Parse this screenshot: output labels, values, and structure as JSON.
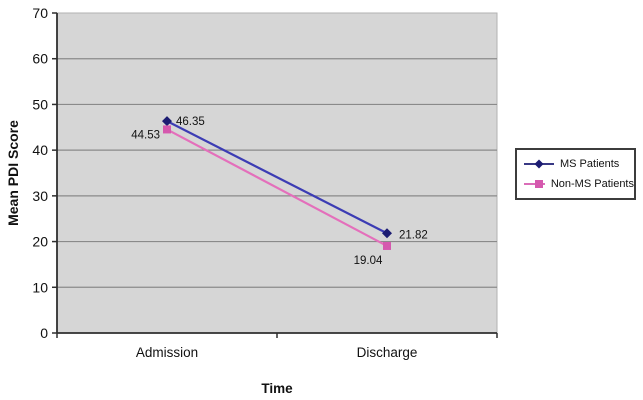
{
  "chart_data": {
    "type": "line",
    "categories": [
      "Admission",
      "Discharge"
    ],
    "series": [
      {
        "name": "MS Patients",
        "values": [
          46.35,
          21.82
        ],
        "point_labels": [
          "46.35",
          "21.82"
        ],
        "line_color": "#3c3cb4",
        "marker_color": "#1c1c72",
        "marker": "diamond"
      },
      {
        "name": "Non-MS Patients",
        "values": [
          44.53,
          19.04
        ],
        "point_labels": [
          "44.53",
          "19.04"
        ],
        "line_color": "#e46fbb",
        "marker_color": "#d558ae",
        "marker": "square"
      }
    ],
    "title": "",
    "xlabel": "Time",
    "ylabel": "Mean PDI Score",
    "ylim": [
      0,
      70
    ],
    "yticks": [
      0,
      10,
      20,
      30,
      40,
      50,
      60,
      70
    ],
    "grid": true,
    "legend_position": "right",
    "colors": {
      "plot_background": "#d6d6d6",
      "plot_border": "#b2b2b2",
      "gridline": "#8a8a8a",
      "axis": "#2f2f2f",
      "text": "#111111"
    }
  }
}
